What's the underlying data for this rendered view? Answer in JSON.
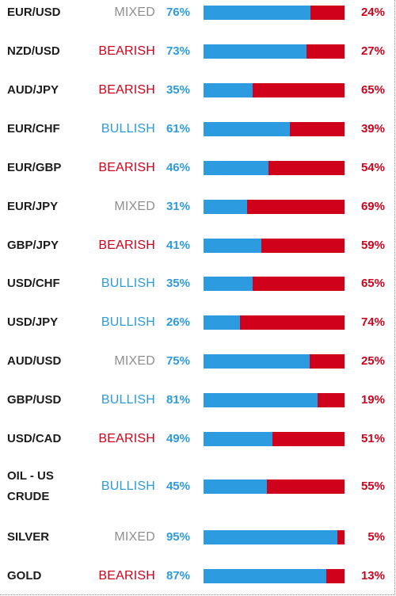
{
  "colors": {
    "long": "#2c9be0",
    "short": "#d0021b",
    "mixed": "#8f8f8f",
    "symbol": "#1c1c1c"
  },
  "rows": [
    {
      "symbol": "EUR/USD",
      "sentiment": "MIXED",
      "long_pct": "76%",
      "short_pct": "24%",
      "long_fraction": 0.76
    },
    {
      "symbol": "NZD/USD",
      "sentiment": "BEARISH",
      "long_pct": "73%",
      "short_pct": "27%",
      "long_fraction": 0.73
    },
    {
      "symbol": "AUD/JPY",
      "sentiment": "BEARISH",
      "long_pct": "35%",
      "short_pct": "65%",
      "long_fraction": 0.35
    },
    {
      "symbol": "EUR/CHF",
      "sentiment": "BULLISH",
      "long_pct": "61%",
      "short_pct": "39%",
      "long_fraction": 0.61
    },
    {
      "symbol": "EUR/GBP",
      "sentiment": "BEARISH",
      "long_pct": "46%",
      "short_pct": "54%",
      "long_fraction": 0.46
    },
    {
      "symbol": "EUR/JPY",
      "sentiment": "MIXED",
      "long_pct": "31%",
      "short_pct": "69%",
      "long_fraction": 0.31
    },
    {
      "symbol": "GBP/JPY",
      "sentiment": "BEARISH",
      "long_pct": "41%",
      "short_pct": "59%",
      "long_fraction": 0.41
    },
    {
      "symbol": "USD/CHF",
      "sentiment": "BULLISH",
      "long_pct": "35%",
      "short_pct": "65%",
      "long_fraction": 0.35
    },
    {
      "symbol": "USD/JPY",
      "sentiment": "BULLISH",
      "long_pct": "26%",
      "short_pct": "74%",
      "long_fraction": 0.26
    },
    {
      "symbol": "AUD/USD",
      "sentiment": "MIXED",
      "long_pct": "75%",
      "short_pct": "25%",
      "long_fraction": 0.75
    },
    {
      "symbol": "GBP/USD",
      "sentiment": "BULLISH",
      "long_pct": "81%",
      "short_pct": "19%",
      "long_fraction": 0.81
    },
    {
      "symbol": "USD/CAD",
      "sentiment": "BEARISH",
      "long_pct": "49%",
      "short_pct": "51%",
      "long_fraction": 0.49
    },
    {
      "symbol": "OIL - US CRUDE",
      "sentiment": "BULLISH",
      "long_pct": "45%",
      "short_pct": "55%",
      "long_fraction": 0.45
    },
    {
      "symbol": "SILVER",
      "sentiment": "MIXED",
      "long_pct": "95%",
      "short_pct": "5%",
      "long_fraction": 0.95
    },
    {
      "symbol": "GOLD",
      "sentiment": "BEARISH",
      "long_pct": "87%",
      "short_pct": "13%",
      "long_fraction": 0.87
    }
  ]
}
